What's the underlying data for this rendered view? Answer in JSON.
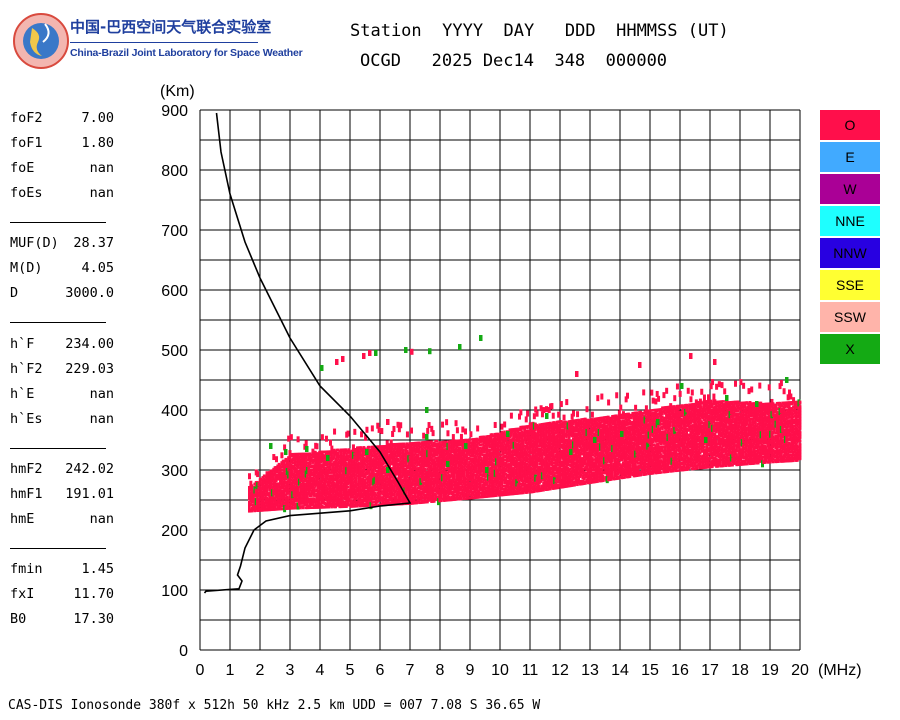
{
  "logo": {
    "cn": "中国-巴西空间天气联合实验室",
    "en": "China-Brazil Joint Laboratory for Space Weather"
  },
  "header": {
    "line1": "Station  YYYY  DAY   DDD  HHMMSS (UT)",
    "line2": "OCGD   2025 Dec14  348  000000"
  },
  "params": [
    [
      {
        "k": "foF2",
        "v": "7.00"
      },
      {
        "k": "foF1",
        "v": "1.80"
      },
      {
        "k": "foE",
        "v": "nan"
      },
      {
        "k": "foEs",
        "v": "nan"
      }
    ],
    [
      {
        "k": "MUF(D)",
        "v": "28.37"
      },
      {
        "k": "M(D)",
        "v": "4.05"
      },
      {
        "k": "D",
        "v": "3000.0"
      }
    ],
    [
      {
        "k": "h`F",
        "v": "234.00"
      },
      {
        "k": "h`F2",
        "v": "229.03"
      },
      {
        "k": "h`E",
        "v": "nan"
      },
      {
        "k": "h`Es",
        "v": "nan"
      }
    ],
    [
      {
        "k": "hmF2",
        "v": "242.02"
      },
      {
        "k": "hmF1",
        "v": "191.01"
      },
      {
        "k": "hmE",
        "v": "nan"
      }
    ],
    [
      {
        "k": "fmin",
        "v": "1.45"
      },
      {
        "k": "fxI",
        "v": "11.70"
      },
      {
        "k": "B0",
        "v": "17.30"
      }
    ]
  ],
  "footer": "CAS-DIS Ionosonde 380f x 512h 50 kHz 2.5 km UDD = 007 7.08 S 36.65 W",
  "legend": [
    {
      "label": "O",
      "color": "#ff0f4b"
    },
    {
      "label": "E",
      "color": "#41aaff"
    },
    {
      "label": "W",
      "color": "#aa0096"
    },
    {
      "label": "NNE",
      "color": "#1effff"
    },
    {
      "label": "NNW",
      "color": "#2800e1"
    },
    {
      "label": "SSE",
      "color": "#ffff32"
    },
    {
      "label": "SSW",
      "color": "#ffb4aa"
    },
    {
      "label": "X",
      "color": "#14aa14"
    }
  ],
  "chart_data": {
    "type": "scatter",
    "xlabel": "(MHz)",
    "ylabel": "(Km)",
    "xlim": [
      0,
      20
    ],
    "ylim": [
      0,
      900
    ],
    "xticks": [
      0,
      1,
      2,
      3,
      4,
      5,
      6,
      7,
      8,
      9,
      10,
      11,
      12,
      13,
      14,
      15,
      16,
      17,
      18,
      19,
      20
    ],
    "yticks": [
      0,
      100,
      200,
      300,
      400,
      500,
      600,
      700,
      800,
      900
    ],
    "grid": true,
    "ionogram_trace": {
      "color": "#ff0f4b",
      "lower_edge": [
        [
          1.6,
          230
        ],
        [
          3,
          235
        ],
        [
          5,
          238
        ],
        [
          7,
          243
        ],
        [
          9,
          252
        ],
        [
          11,
          262
        ],
        [
          13,
          278
        ],
        [
          15,
          293
        ],
        [
          17,
          304
        ],
        [
          19,
          312
        ],
        [
          20,
          315
        ]
      ],
      "upper_edge": [
        [
          1.6,
          270
        ],
        [
          3,
          325
        ],
        [
          5,
          335
        ],
        [
          7,
          345
        ],
        [
          9,
          350
        ],
        [
          11,
          375
        ],
        [
          13,
          385
        ],
        [
          15,
          400
        ],
        [
          17,
          415
        ],
        [
          19,
          410
        ],
        [
          20,
          415
        ]
      ]
    },
    "profile_curve": [
      [
        0.55,
        895
      ],
      [
        0.7,
        830
      ],
      [
        1.0,
        760
      ],
      [
        1.5,
        680
      ],
      [
        2.0,
        620
      ],
      [
        3,
        520
      ],
      [
        4,
        440
      ],
      [
        5,
        390
      ],
      [
        6,
        330
      ],
      [
        6.6,
        280
      ],
      [
        7.0,
        245
      ],
      [
        6.0,
        240
      ],
      [
        5.0,
        232
      ],
      [
        4.0,
        228
      ],
      [
        3.0,
        224
      ],
      [
        2.2,
        215
      ],
      [
        1.8,
        200
      ],
      [
        1.5,
        170
      ],
      [
        1.35,
        140
      ],
      [
        1.25,
        125
      ],
      [
        1.4,
        115
      ],
      [
        1.3,
        102
      ],
      [
        0.2,
        98
      ],
      [
        0.15,
        95
      ]
    ],
    "x_mode_points": [
      [
        2.3,
        340
      ],
      [
        2.8,
        330
      ],
      [
        3.5,
        335
      ],
      [
        4.2,
        320
      ],
      [
        5.5,
        330
      ],
      [
        6.2,
        300
      ],
      [
        7.5,
        355
      ],
      [
        8.2,
        310
      ],
      [
        8.8,
        340
      ],
      [
        9.5,
        300
      ],
      [
        10.2,
        360
      ],
      [
        11.5,
        390
      ],
      [
        12.3,
        330
      ],
      [
        13.1,
        350
      ],
      [
        14,
        360
      ],
      [
        15.2,
        380
      ],
      [
        16,
        440
      ],
      [
        16.8,
        350
      ],
      [
        17.5,
        420
      ],
      [
        18.5,
        410
      ],
      [
        19.5,
        450
      ],
      [
        4.0,
        470
      ],
      [
        5.8,
        495
      ],
      [
        6.8,
        500
      ],
      [
        7.6,
        498
      ],
      [
        8.6,
        505
      ],
      [
        9.3,
        520
      ],
      [
        7.5,
        400
      ]
    ],
    "o_mode_outliers": [
      [
        4.5,
        480
      ],
      [
        4.7,
        485
      ],
      [
        5.4,
        490
      ],
      [
        5.6,
        495
      ],
      [
        7.0,
        497
      ],
      [
        12.5,
        460
      ],
      [
        14.6,
        475
      ],
      [
        16.3,
        490
      ],
      [
        17.1,
        480
      ],
      [
        6.2,
        380
      ]
    ]
  }
}
